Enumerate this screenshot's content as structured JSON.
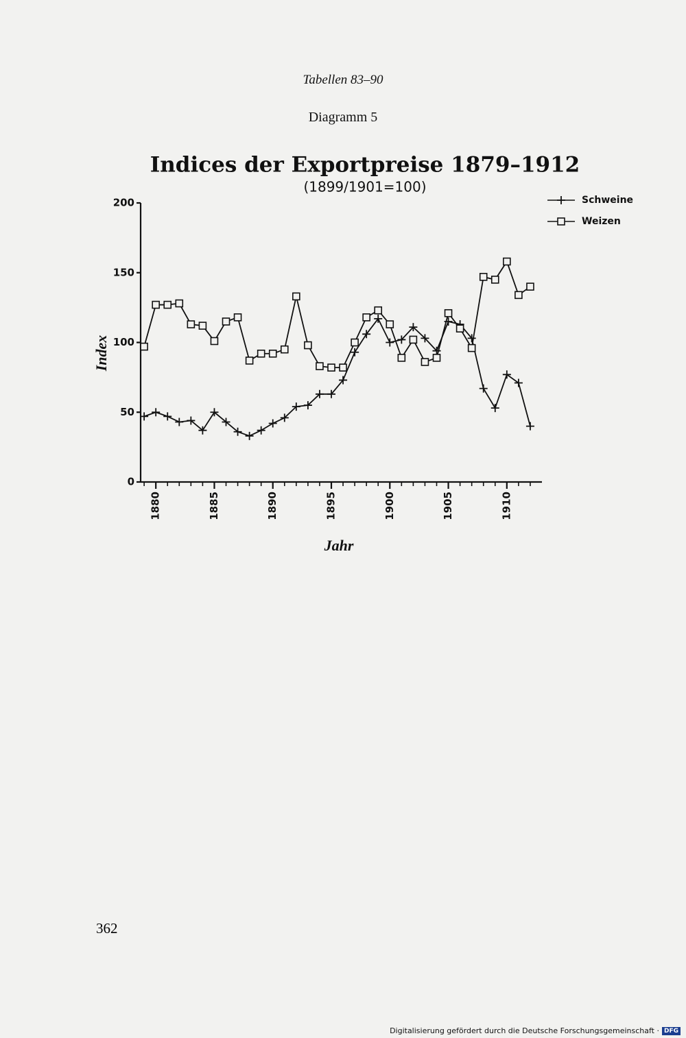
{
  "page": {
    "running_head": "Tabellen 83–90",
    "diagram_label": "Diagramm 5",
    "page_number": "362",
    "footer": "Digitalisierung gefördert durch die Deutsche Forschungsgemeinschaft ·",
    "footer_logo": "DFG"
  },
  "chart_data": {
    "type": "line",
    "title": "Indices der Exportpreise 1879–1912",
    "subtitle": "(1899/1901=100)",
    "x_label": "Jahr",
    "y_label": "Index",
    "x": [
      1879,
      1880,
      1881,
      1882,
      1883,
      1884,
      1885,
      1886,
      1887,
      1888,
      1889,
      1890,
      1891,
      1892,
      1893,
      1894,
      1895,
      1896,
      1897,
      1898,
      1899,
      1900,
      1901,
      1902,
      1903,
      1904,
      1905,
      1906,
      1907,
      1908,
      1909,
      1910,
      1911,
      1912
    ],
    "series": [
      {
        "name": "Schweine",
        "color": "#111111",
        "marker": "plus",
        "values": [
          47,
          50,
          47,
          43,
          44,
          37,
          50,
          43,
          36,
          33,
          37,
          42,
          46,
          54,
          55,
          63,
          63,
          73,
          93,
          106,
          117,
          100,
          102,
          111,
          103,
          94,
          115,
          113,
          103,
          67,
          53,
          77,
          71,
          40
        ]
      },
      {
        "name": "Weizen",
        "color": "#111111",
        "marker": "square",
        "values": [
          97,
          127,
          127,
          128,
          113,
          112,
          101,
          115,
          118,
          87,
          92,
          92,
          95,
          133,
          98,
          83,
          82,
          82,
          100,
          118,
          123,
          113,
          89,
          102,
          86,
          89,
          121,
          110,
          96,
          147,
          145,
          158,
          134,
          140
        ]
      }
    ],
    "xlim": [
      1878.7,
      1913
    ],
    "xticks": [
      1880,
      1885,
      1890,
      1895,
      1900,
      1905,
      1910
    ],
    "ylim": [
      0,
      200
    ],
    "yticks": [
      0,
      50,
      100,
      150,
      200
    ],
    "legend": "upper right"
  }
}
